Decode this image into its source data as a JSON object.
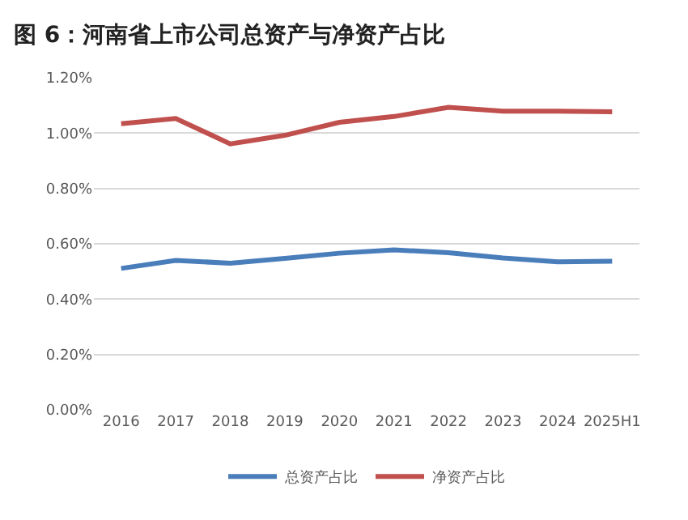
{
  "chart_data": {
    "type": "line",
    "title": "图 6：河南省上市公司总资产与净资产占比",
    "categories": [
      "2016",
      "2017",
      "2018",
      "2019",
      "2020",
      "2021",
      "2022",
      "2023",
      "2024",
      "2025H1"
    ],
    "series": [
      {
        "name": "总资产占比",
        "color": "#4a7ebb",
        "values": [
          0.511,
          0.54,
          0.53,
          0.547,
          0.566,
          0.578,
          0.568,
          0.549,
          0.535,
          0.537
        ]
      },
      {
        "name": "净资产占比",
        "color": "#c0504d",
        "values": [
          1.034,
          1.053,
          0.961,
          0.992,
          1.039,
          1.06,
          1.093,
          1.079,
          1.079,
          1.077
        ]
      }
    ],
    "ylim": [
      0,
      1.2
    ],
    "yticks": [
      {
        "value": 0,
        "label": "0.00%"
      },
      {
        "value": 0.2,
        "label": "0.20%"
      },
      {
        "value": 0.4,
        "label": "0.40%"
      },
      {
        "value": 0.6,
        "label": "0.60%"
      },
      {
        "value": 0.8,
        "label": "0.80%"
      },
      {
        "value": 1.0,
        "label": "1.00%"
      },
      {
        "value": 1.2,
        "label": "1.20%"
      }
    ],
    "grid": "y",
    "legend": "bottom",
    "marker": "none",
    "line_style": "solid"
  }
}
